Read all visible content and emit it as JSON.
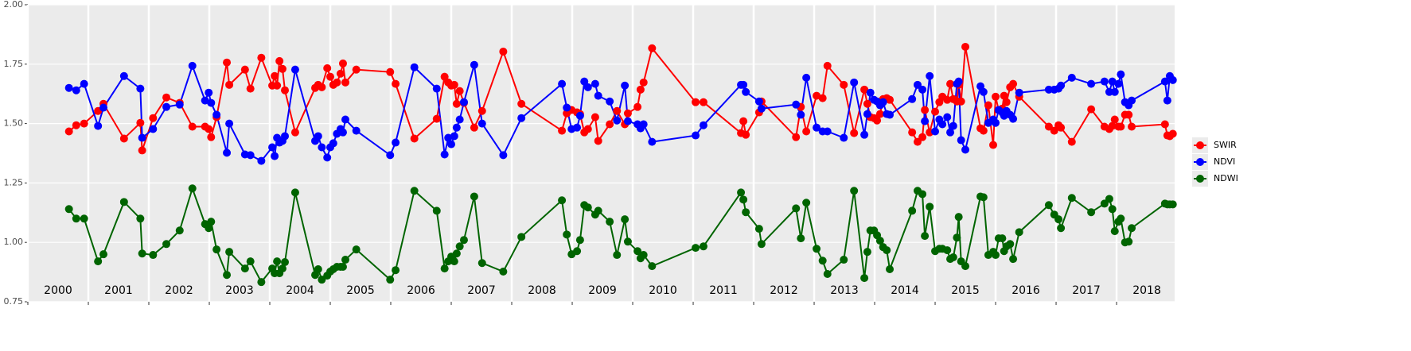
{
  "chart_data": {
    "type": "line",
    "x": [
      2000.68,
      2000.8,
      2000.93,
      2001.16,
      2001.25,
      2001.59,
      2001.86,
      2001.89,
      2002.07,
      2002.29,
      2002.51,
      2002.72,
      2002.93,
      2002.99,
      2003.03,
      2003.12,
      2003.29,
      2003.33,
      2003.59,
      2003.68,
      2003.86,
      2004.04,
      2004.08,
      2004.12,
      2004.16,
      2004.21,
      2004.25,
      2004.42,
      2004.75,
      2004.8,
      2004.86,
      2004.95,
      2005.0,
      2005.05,
      2005.11,
      2005.17,
      2005.21,
      2005.25,
      2005.43,
      2005.99,
      2006.08,
      2006.39,
      2006.76,
      2006.89,
      2006.95,
      2007.0,
      2007.05,
      2007.09,
      2007.14,
      2007.21,
      2007.38,
      2007.51,
      2007.86,
      2008.16,
      2008.83,
      2008.91,
      2008.99,
      2009.08,
      2009.13,
      2009.2,
      2009.26,
      2009.38,
      2009.43,
      2009.62,
      2009.74,
      2009.87,
      2009.92,
      2010.08,
      2010.13,
      2010.18,
      2010.32,
      2011.04,
      2011.17,
      2011.79,
      2011.83,
      2011.87,
      2012.09,
      2012.13,
      2012.7,
      2012.78,
      2012.87,
      2013.04,
      2013.14,
      2013.22,
      2013.49,
      2013.66,
      2013.83,
      2013.88,
      2013.93,
      2013.99,
      2014.04,
      2014.09,
      2014.14,
      2014.2,
      2014.25,
      2014.62,
      2014.71,
      2014.79,
      2014.83,
      2014.91,
      2015.0,
      2015.07,
      2015.12,
      2015.2,
      2015.25,
      2015.3,
      2015.36,
      2015.39,
      2015.43,
      2015.5,
      2015.75,
      2015.8,
      2015.88,
      2015.96,
      2016.0,
      2016.05,
      2016.11,
      2016.14,
      2016.18,
      2016.24,
      2016.29,
      2016.39,
      2016.88,
      2016.97,
      2017.04,
      2017.08,
      2017.26,
      2017.58,
      2017.8,
      2017.88,
      2017.93,
      2017.97,
      2018.03,
      2018.07,
      2018.14,
      2018.2,
      2018.25,
      2018.8,
      2018.84,
      2018.88,
      2018.93
    ],
    "series": [
      {
        "name": "SWIR",
        "color": "#ff0000",
        "values": [
          1.467,
          1.493,
          1.5,
          1.553,
          1.583,
          1.437,
          1.503,
          1.387,
          1.523,
          1.61,
          1.587,
          1.487,
          1.487,
          1.477,
          1.443,
          1.527,
          1.757,
          1.663,
          1.727,
          1.647,
          1.777,
          1.66,
          1.7,
          1.66,
          1.763,
          1.73,
          1.64,
          1.463,
          1.65,
          1.663,
          1.653,
          1.733,
          1.697,
          1.663,
          1.673,
          1.71,
          1.753,
          1.673,
          1.727,
          1.717,
          1.667,
          1.437,
          1.52,
          1.697,
          1.673,
          1.66,
          1.663,
          1.583,
          1.637,
          1.587,
          1.483,
          1.553,
          1.803,
          1.583,
          1.47,
          1.543,
          1.557,
          1.547,
          1.54,
          1.463,
          1.477,
          1.527,
          1.427,
          1.497,
          1.553,
          1.497,
          1.543,
          1.57,
          1.643,
          1.673,
          1.817,
          1.59,
          1.59,
          1.46,
          1.51,
          1.453,
          1.547,
          1.593,
          1.443,
          1.57,
          1.467,
          1.617,
          1.607,
          1.743,
          1.663,
          1.46,
          1.643,
          1.583,
          1.527,
          1.523,
          1.513,
          1.54,
          1.603,
          1.607,
          1.6,
          1.463,
          1.423,
          1.443,
          1.557,
          1.463,
          1.55,
          1.59,
          1.613,
          1.6,
          1.667,
          1.603,
          1.593,
          1.663,
          1.593,
          1.823,
          1.48,
          1.47,
          1.577,
          1.41,
          1.613,
          1.557,
          1.563,
          1.617,
          1.59,
          1.653,
          1.667,
          1.613,
          1.487,
          1.47,
          1.493,
          1.483,
          1.423,
          1.56,
          1.487,
          1.477,
          1.49,
          1.517,
          1.487,
          1.487,
          1.537,
          1.537,
          1.487,
          1.497,
          1.45,
          1.447,
          1.457
        ]
      },
      {
        "name": "NDVI",
        "color": "#0000ff",
        "values": [
          1.65,
          1.64,
          1.667,
          1.49,
          1.567,
          1.7,
          1.647,
          1.44,
          1.477,
          1.57,
          1.58,
          1.743,
          1.597,
          1.63,
          1.587,
          1.537,
          1.377,
          1.5,
          1.37,
          1.367,
          1.343,
          1.4,
          1.363,
          1.44,
          1.42,
          1.427,
          1.447,
          1.727,
          1.427,
          1.447,
          1.4,
          1.357,
          1.4,
          1.417,
          1.457,
          1.477,
          1.463,
          1.517,
          1.47,
          1.367,
          1.42,
          1.737,
          1.647,
          1.37,
          1.44,
          1.413,
          1.447,
          1.483,
          1.517,
          1.59,
          1.747,
          1.5,
          1.367,
          1.523,
          1.667,
          1.567,
          1.477,
          1.483,
          1.533,
          1.677,
          1.653,
          1.667,
          1.617,
          1.593,
          1.513,
          1.66,
          1.51,
          1.497,
          1.48,
          1.497,
          1.423,
          1.45,
          1.493,
          1.663,
          1.663,
          1.633,
          1.593,
          1.563,
          1.58,
          1.537,
          1.693,
          1.483,
          1.467,
          1.467,
          1.44,
          1.673,
          1.453,
          1.54,
          1.63,
          1.6,
          1.593,
          1.577,
          1.59,
          1.54,
          1.537,
          1.603,
          1.663,
          1.643,
          1.51,
          1.7,
          1.467,
          1.517,
          1.497,
          1.527,
          1.463,
          1.49,
          1.667,
          1.677,
          1.43,
          1.39,
          1.657,
          1.633,
          1.503,
          1.517,
          1.503,
          1.557,
          1.547,
          1.533,
          1.553,
          1.537,
          1.52,
          1.63,
          1.643,
          1.643,
          1.647,
          1.66,
          1.693,
          1.667,
          1.677,
          1.633,
          1.677,
          1.633,
          1.667,
          1.707,
          1.59,
          1.577,
          1.597,
          1.677,
          1.597,
          1.7,
          1.683
        ]
      },
      {
        "name": "NDWI",
        "color": "#006400",
        "values": [
          1.14,
          1.1,
          1.1,
          0.92,
          0.95,
          1.17,
          1.1,
          0.953,
          0.947,
          0.993,
          1.05,
          1.227,
          1.077,
          1.06,
          1.087,
          0.97,
          0.863,
          0.96,
          0.89,
          0.92,
          0.833,
          0.89,
          0.87,
          0.92,
          0.87,
          0.89,
          0.917,
          1.21,
          0.863,
          0.887,
          0.843,
          0.86,
          0.877,
          0.887,
          0.897,
          0.897,
          0.897,
          0.927,
          0.97,
          0.843,
          0.883,
          1.217,
          1.133,
          0.89,
          0.92,
          0.94,
          0.92,
          0.953,
          0.983,
          1.01,
          1.193,
          0.913,
          0.877,
          1.023,
          1.177,
          1.033,
          0.95,
          0.963,
          1.01,
          1.157,
          1.147,
          1.117,
          1.133,
          1.087,
          0.947,
          1.097,
          1.003,
          0.963,
          0.933,
          0.947,
          0.9,
          0.977,
          0.983,
          1.21,
          1.18,
          1.127,
          1.057,
          0.993,
          1.143,
          1.017,
          1.167,
          0.973,
          0.923,
          0.867,
          0.927,
          1.217,
          0.85,
          0.96,
          1.05,
          1.05,
          1.03,
          1.007,
          0.98,
          0.967,
          0.887,
          1.133,
          1.217,
          1.203,
          1.027,
          1.15,
          0.963,
          0.973,
          0.973,
          0.967,
          0.93,
          0.937,
          1.02,
          1.107,
          0.92,
          0.9,
          1.193,
          1.19,
          0.947,
          0.96,
          0.947,
          1.017,
          1.017,
          0.963,
          0.983,
          0.993,
          0.93,
          1.043,
          1.157,
          1.117,
          1.097,
          1.06,
          1.187,
          1.127,
          1.163,
          1.183,
          1.14,
          1.047,
          1.087,
          1.1,
          1.0,
          1.003,
          1.06,
          1.163,
          1.16,
          1.16,
          1.16
        ]
      }
    ],
    "xlim": [
      2000,
      2018.96
    ],
    "xticks": [
      2000,
      2001,
      2002,
      2003,
      2004,
      2005,
      2006,
      2007,
      2008,
      2009,
      2010,
      2011,
      2012,
      2013,
      2014,
      2015,
      2016,
      2017,
      2018
    ],
    "ylim": [
      0.75,
      2.0
    ],
    "yticks": [
      {
        "value": 0.75,
        "label": "0.75"
      },
      {
        "value": 1.0,
        "label": "1.00"
      },
      {
        "value": 1.25,
        "label": "1.25"
      },
      {
        "value": 1.5,
        "label": "1.50"
      },
      {
        "value": 1.75,
        "label": "1.75"
      },
      {
        "value": 2.0,
        "label": "2.00"
      }
    ],
    "grid": true,
    "legend": "right"
  }
}
